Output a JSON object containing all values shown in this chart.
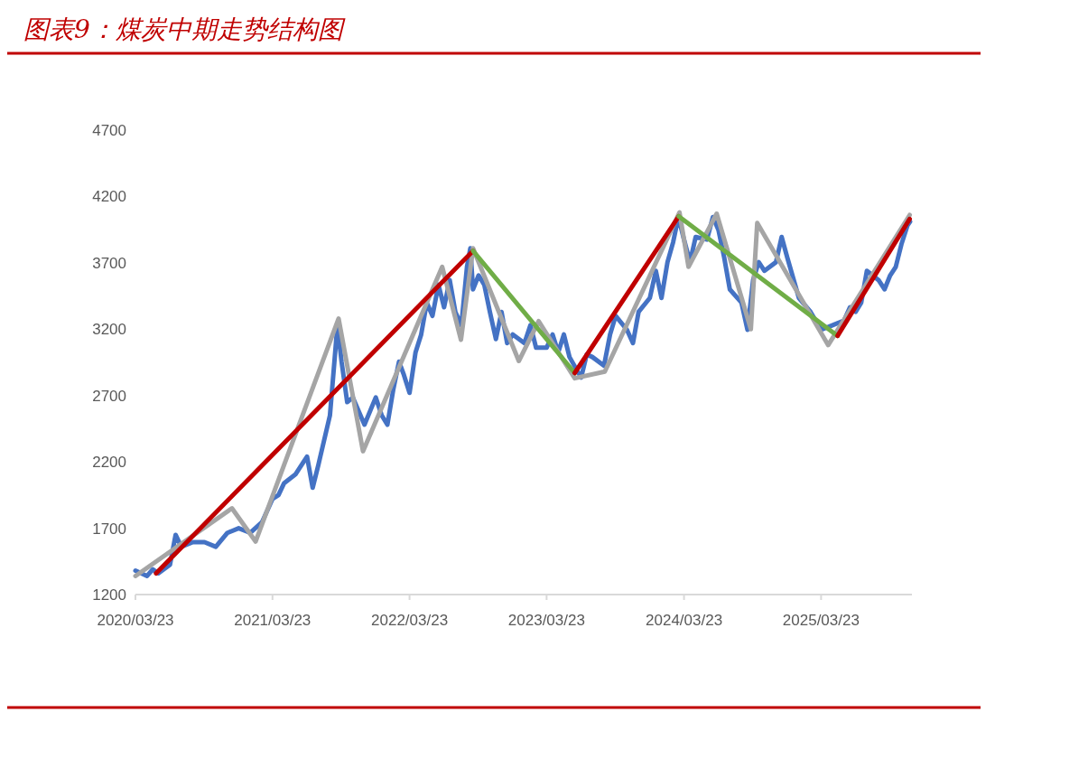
{
  "chart_data": {
    "type": "line",
    "title": "图表9：煤炭中期走势结构图",
    "xlim": [
      "2020-03-23",
      "2025-11-20"
    ],
    "ylim": [
      1200,
      4700
    ],
    "xticks": [
      {
        "value": "2020-03-23",
        "label": "2020/03/23"
      },
      {
        "value": "2021-03-23",
        "label": "2021/03/23"
      },
      {
        "value": "2022-03-23",
        "label": "2022/03/23"
      },
      {
        "value": "2023-03-23",
        "label": "2023/03/23"
      },
      {
        "value": "2024-03-23",
        "label": "2024/03/23"
      },
      {
        "value": "2025-03-23",
        "label": "2025/03/23"
      }
    ],
    "yticks": [
      1200,
      1700,
      2200,
      2700,
      3200,
      3700,
      4200,
      4700
    ],
    "grid": false,
    "marker": "none",
    "line_style": "solid",
    "series": [
      {
        "color": "#4472c4",
        "x": [
          "2020-03-23",
          "2020-04-23",
          "2020-05-08",
          "2020-05-23",
          "2020-06-23",
          "2020-07-08",
          "2020-07-23",
          "2020-08-23",
          "2020-09-23",
          "2020-10-23",
          "2020-11-23",
          "2020-12-23",
          "2021-01-23",
          "2021-02-23",
          "2021-03-23",
          "2021-04-08",
          "2021-04-23",
          "2021-05-23",
          "2021-06-23",
          "2021-07-08",
          "2021-07-23",
          "2021-08-23",
          "2021-09-08",
          "2021-09-12",
          "2021-09-23",
          "2021-10-08",
          "2021-10-23",
          "2021-11-23",
          "2021-12-23",
          "2022-01-08",
          "2022-01-23",
          "2022-02-08",
          "2022-02-23",
          "2022-03-08",
          "2022-03-23",
          "2022-04-08",
          "2022-04-23",
          "2022-05-08",
          "2022-05-23",
          "2022-06-08",
          "2022-06-23",
          "2022-07-08",
          "2022-07-23",
          "2022-08-08",
          "2022-08-23",
          "2022-09-01",
          "2022-09-08",
          "2022-09-23",
          "2022-10-08",
          "2022-10-23",
          "2022-11-08",
          "2022-11-23",
          "2022-12-08",
          "2022-12-23",
          "2023-01-23",
          "2023-02-08",
          "2023-02-23",
          "2023-03-23",
          "2023-04-08",
          "2023-04-23",
          "2023-05-08",
          "2023-05-23",
          "2023-06-23",
          "2023-07-08",
          "2023-07-23",
          "2023-08-23",
          "2023-09-08",
          "2023-09-23",
          "2023-10-23",
          "2023-11-08",
          "2023-11-23",
          "2023-12-23",
          "2024-01-08",
          "2024-01-23",
          "2024-02-08",
          "2024-02-23",
          "2024-03-08",
          "2024-03-23",
          "2024-04-08",
          "2024-04-23",
          "2024-05-23",
          "2024-06-08",
          "2024-06-23",
          "2024-07-08",
          "2024-07-23",
          "2024-08-23",
          "2024-09-08",
          "2024-09-23",
          "2024-10-08",
          "2024-10-23",
          "2024-11-23",
          "2024-12-08",
          "2024-12-23",
          "2025-01-23",
          "2025-02-23",
          "2025-03-23",
          "2025-04-23",
          "2025-05-23",
          "2025-06-08",
          "2025-06-23",
          "2025-07-08",
          "2025-07-23",
          "2025-08-23",
          "2025-09-08",
          "2025-09-23",
          "2025-10-08",
          "2025-10-23",
          "2025-11-08",
          "2025-11-15"
        ],
        "values": [
          1380,
          1340,
          1390,
          1360,
          1425,
          1650,
          1560,
          1595,
          1595,
          1560,
          1665,
          1700,
          1665,
          1745,
          1920,
          1950,
          2040,
          2105,
          2240,
          2005,
          2175,
          2550,
          3095,
          3230,
          2955,
          2650,
          2685,
          2480,
          2685,
          2550,
          2480,
          2750,
          2955,
          2855,
          2720,
          3025,
          3160,
          3400,
          3300,
          3535,
          3365,
          3570,
          3330,
          3230,
          3670,
          3810,
          3500,
          3605,
          3535,
          3330,
          3125,
          3330,
          3095,
          3160,
          3095,
          3230,
          3060,
          3060,
          3160,
          3025,
          3160,
          2990,
          2835,
          3010,
          2990,
          2925,
          3160,
          3300,
          3195,
          3095,
          3330,
          3435,
          3640,
          3435,
          3705,
          3855,
          4045,
          3875,
          3705,
          3895,
          3875,
          4045,
          3945,
          3740,
          3500,
          3400,
          3195,
          3570,
          3705,
          3640,
          3705,
          3895,
          3740,
          3435,
          3330,
          3195,
          3230,
          3265,
          3365,
          3330,
          3400,
          3640,
          3570,
          3500,
          3605,
          3670,
          3840,
          3980,
          4010
        ]
      },
      {
        "color": "#a5a5a5",
        "x": [
          "2020-03-23",
          "2020-12-05",
          "2021-02-06",
          "2021-09-15",
          "2021-11-19",
          "2022-06-18",
          "2022-08-07",
          "2022-09-08",
          "2023-01-08",
          "2023-03-02",
          "2023-06-06",
          "2023-08-25",
          "2024-03-11",
          "2024-04-04",
          "2024-06-18",
          "2024-09-17",
          "2024-10-04",
          "2025-04-11",
          "2025-11-14"
        ],
        "values": [
          1340,
          1850,
          1600,
          3280,
          2280,
          3670,
          3120,
          3810,
          2960,
          3260,
          2830,
          2880,
          4080,
          3670,
          4070,
          3200,
          4000,
          3080,
          4060
        ]
      },
      {
        "color": "#c00000",
        "x": [
          "2020-05-17",
          "2022-09-08"
        ],
        "values": [
          1360,
          3790
        ]
      },
      {
        "color": "#70ad47",
        "x": [
          "2022-09-08",
          "2023-06-06"
        ],
        "values": [
          3790,
          2870
        ]
      },
      {
        "color": "#c00000",
        "x": [
          "2023-06-06",
          "2024-03-09"
        ],
        "values": [
          2870,
          4050
        ]
      },
      {
        "color": "#70ad47",
        "x": [
          "2024-03-09",
          "2025-05-06"
        ],
        "values": [
          4050,
          3150
        ]
      },
      {
        "color": "#c00000",
        "x": [
          "2025-05-06",
          "2025-11-14"
        ],
        "values": [
          3150,
          4030
        ]
      }
    ]
  }
}
